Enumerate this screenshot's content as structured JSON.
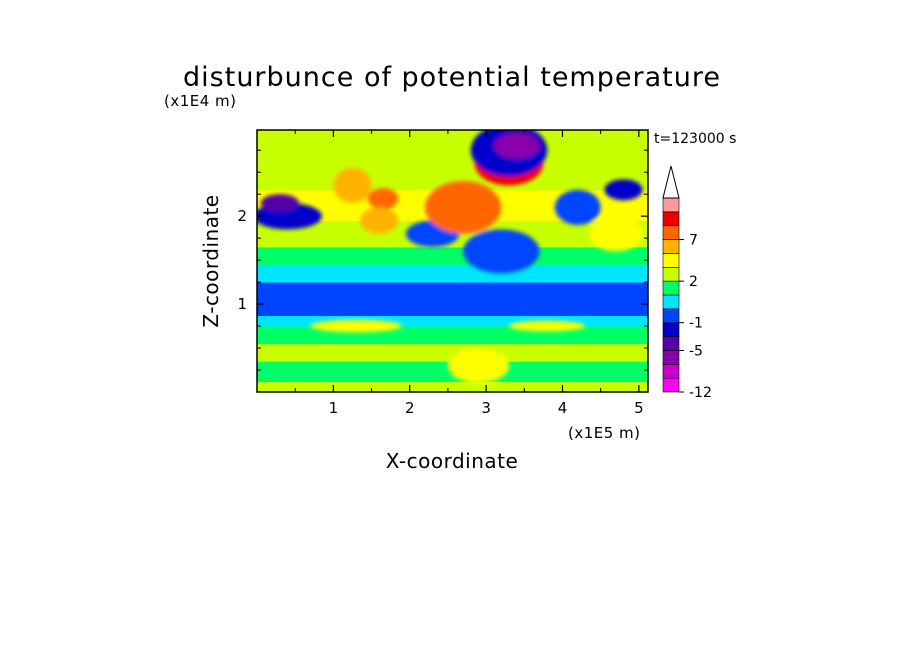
{
  "chart_data": {
    "type": "heatmap",
    "title": "disturbunce of potential temperature",
    "xlabel": "X-coordinate",
    "ylabel": "Z-coordinate",
    "x_unit": "(x1E5 m)",
    "y_unit": "(x1E4 m)",
    "time_label": "t=123000 s",
    "xlim": [
      0,
      5.12
    ],
    "ylim": [
      0,
      2.98
    ],
    "x_ticks": [
      "1",
      "2",
      "3",
      "4",
      "5"
    ],
    "x_tick_values": [
      1,
      2,
      3,
      4,
      5
    ],
    "y_ticks": [
      "1",
      "2"
    ],
    "y_tick_values": [
      1,
      2
    ],
    "colorbar": {
      "levels": [
        -12,
        -9,
        -7,
        -5,
        -3,
        -1,
        0,
        1,
        2,
        3,
        5,
        7,
        9,
        11
      ],
      "tick_labels": [
        "-12",
        "-5",
        "-1",
        "2",
        "7"
      ],
      "tick_values": [
        -12,
        -5,
        -1,
        2,
        7
      ],
      "colors": [
        "#ff00ff",
        "#cc00cc",
        "#8800aa",
        "#5500aa",
        "#0000cc",
        "#0044ff",
        "#00e5ff",
        "#00ff66",
        "#c8ff00",
        "#ffff00",
        "#ffb300",
        "#ff6600",
        "#ee0000",
        "#ff9999"
      ],
      "extend": "max"
    },
    "bands": [
      {
        "z": [
          0.0,
          0.12
        ],
        "value": 2
      },
      {
        "z": [
          0.12,
          0.35
        ],
        "value": 1
      },
      {
        "z": [
          0.35,
          0.55
        ],
        "value": 2
      },
      {
        "z": [
          0.55,
          0.75
        ],
        "value": 1
      },
      {
        "z": [
          0.75,
          0.87
        ],
        "value": 0
      },
      {
        "z": [
          0.87,
          1.25
        ],
        "value": -1
      },
      {
        "z": [
          1.25,
          1.45
        ],
        "value": 0
      },
      {
        "z": [
          1.45,
          1.65
        ],
        "value": 1
      },
      {
        "z": [
          1.65,
          1.95
        ],
        "value": 2
      },
      {
        "z": [
          1.95,
          2.3
        ],
        "value": 3
      },
      {
        "z": [
          2.3,
          2.98
        ],
        "value": 2
      }
    ],
    "features": [
      {
        "x": 0.4,
        "z": 2.0,
        "rx": 0.45,
        "rz": 0.15,
        "value": -3
      },
      {
        "x": 0.3,
        "z": 2.15,
        "rx": 0.25,
        "rz": 0.1,
        "value": -5
      },
      {
        "x": 1.25,
        "z": 2.35,
        "rx": 0.25,
        "rz": 0.2,
        "value": 5
      },
      {
        "x": 1.65,
        "z": 2.2,
        "rx": 0.2,
        "rz": 0.12,
        "value": 7
      },
      {
        "x": 1.6,
        "z": 1.95,
        "rx": 0.25,
        "rz": 0.15,
        "value": 5
      },
      {
        "x": 2.3,
        "z": 1.8,
        "rx": 0.35,
        "rz": 0.15,
        "value": -1
      },
      {
        "x": 2.7,
        "z": 2.1,
        "rx": 0.5,
        "rz": 0.3,
        "value": 7
      },
      {
        "x": 3.3,
        "z": 2.6,
        "rx": 0.45,
        "rz": 0.25,
        "value": 9
      },
      {
        "x": 3.3,
        "z": 2.75,
        "rx": 0.5,
        "rz": 0.3,
        "value": -3
      },
      {
        "x": 3.4,
        "z": 2.8,
        "rx": 0.3,
        "rz": 0.15,
        "value": -7
      },
      {
        "x": 3.2,
        "z": 1.6,
        "rx": 0.5,
        "rz": 0.25,
        "value": -1
      },
      {
        "x": 4.2,
        "z": 2.1,
        "rx": 0.3,
        "rz": 0.2,
        "value": -1
      },
      {
        "x": 4.8,
        "z": 2.3,
        "rx": 0.25,
        "rz": 0.12,
        "value": -3
      },
      {
        "x": 4.7,
        "z": 1.8,
        "rx": 0.35,
        "rz": 0.2,
        "value": 3
      },
      {
        "x": 2.9,
        "z": 0.3,
        "rx": 0.4,
        "rz": 0.2,
        "value": 3
      },
      {
        "x": 1.3,
        "z": 0.75,
        "rx": 0.6,
        "rz": 0.07,
        "value": 3
      },
      {
        "x": 3.8,
        "z": 0.75,
        "rx": 0.5,
        "rz": 0.06,
        "value": 3
      }
    ]
  }
}
